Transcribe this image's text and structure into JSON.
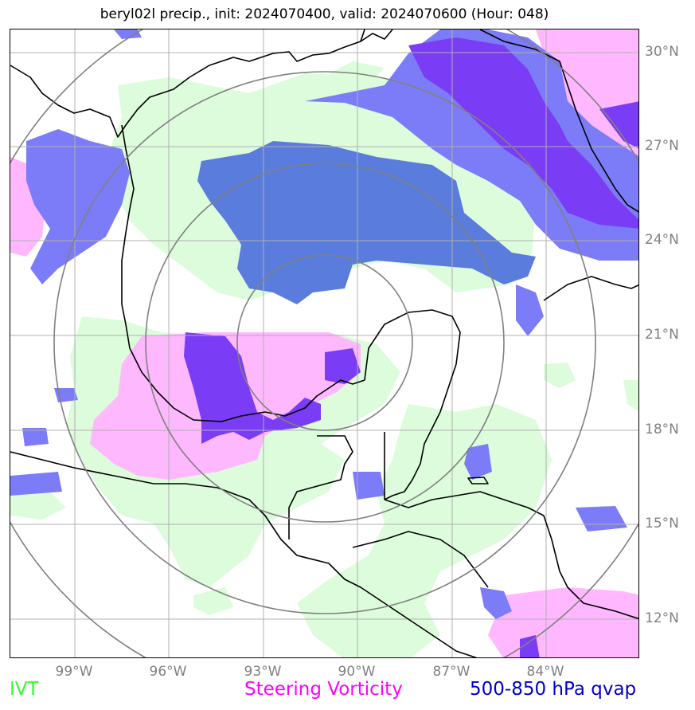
{
  "title": "beryl02l precip., init: 2024070400, valid: 2024070600 (Hour: 048)",
  "lat_labels": [
    "30°N",
    "27°N",
    "24°N",
    "21°N",
    "18°N",
    "15°N",
    "12°N"
  ],
  "lon_labels": [
    "99°W",
    "96°W",
    "93°W",
    "90°W",
    "87°W",
    "84°W"
  ],
  "legend": {
    "ivt": "IVT",
    "vorticity": "Steering Vorticity",
    "qvap": "500-850 hPa qvap"
  },
  "colors": {
    "ivt": "#dcfcdc",
    "vorticity": "#ffb4ff",
    "qvap_light": "#7c7cf8",
    "qvap_mid": "#5a7cdc",
    "qvap_dark": "#7a3cf4",
    "legend_ivt": "#2eff2e",
    "legend_vorticity": "#ff00ff",
    "legend_qvap": "#0000cc",
    "grid": "#b0b0b0",
    "range_rings": "#808080",
    "coast": "#000000"
  },
  "map": {
    "projection": "lat-lon",
    "lon_range": [
      "101°W",
      "81°W"
    ],
    "lat_range": [
      "10.8°N",
      "30.8°N"
    ],
    "grid_interval_deg": 3,
    "range_rings": 4
  }
}
